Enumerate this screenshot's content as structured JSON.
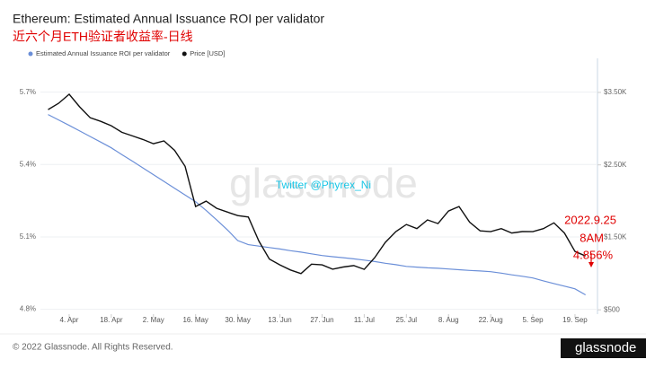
{
  "chart_data": {
    "type": "line",
    "title": "Ethereum: Estimated Annual Issuance ROI per validator",
    "subtitle": "近六个月ETH验证者收益率-日线",
    "watermark": "glassnode",
    "annotations": [
      "Twitter @Phyrex_Ni",
      "2022.9.25",
      "8AM",
      "4.856%"
    ],
    "footer": "© 2022 Glassnode. All Rights Reserved.",
    "logo": "glassnode",
    "categories": [
      null,
      null,
      "4. Apr",
      null,
      null,
      null,
      "18. Apr",
      null,
      null,
      null,
      "2. May",
      null,
      null,
      null,
      "16. May",
      null,
      null,
      null,
      "30. May",
      null,
      null,
      null,
      "13. Jun",
      null,
      null,
      null,
      "27. Jun",
      null,
      null,
      null,
      "11. Jul",
      null,
      null,
      null,
      "25. Jul",
      null,
      null,
      null,
      "8. Aug",
      null,
      null,
      null,
      "22. Aug",
      null,
      null,
      null,
      "5. Sep",
      null,
      null,
      null,
      "19. Sep",
      null
    ],
    "series": [
      {
        "name": "Estimated Annual Issuance ROI per validator",
        "color": "#6b8fd8",
        "values": [
          5.607,
          5.585,
          5.562,
          5.539,
          5.516,
          5.493,
          5.469,
          5.441,
          5.414,
          5.386,
          5.358,
          5.33,
          5.302,
          5.274,
          5.246,
          5.21,
          5.17,
          5.13,
          5.085,
          5.068,
          5.062,
          5.056,
          5.05,
          5.043,
          5.037,
          5.03,
          5.023,
          5.018,
          5.014,
          5.009,
          5.004,
          4.998,
          4.991,
          4.985,
          4.978,
          4.975,
          4.972,
          4.97,
          4.967,
          4.964,
          4.961,
          4.959,
          4.956,
          4.95,
          4.943,
          4.937,
          4.93,
          4.918,
          4.907,
          4.896,
          4.885,
          4.86
        ]
      },
      {
        "name": "Price [USD]",
        "color": "#111111",
        "axis": "y2",
        "values": [
          3263,
          3350,
          3474,
          3300,
          3150,
          3100,
          3040,
          2950,
          2900,
          2850,
          2792,
          2830,
          2700,
          2480,
          1925,
          2000,
          1900,
          1850,
          1800,
          1780,
          1450,
          1200,
          1120,
          1050,
          1000,
          1130,
          1120,
          1060,
          1090,
          1110,
          1058,
          1220,
          1430,
          1580,
          1677,
          1620,
          1740,
          1690,
          1863,
          1925,
          1710,
          1590,
          1578,
          1620,
          1560,
          1580,
          1578,
          1620,
          1700,
          1560,
          1305,
          1243
        ]
      }
    ],
    "ylim": [
      4.78,
      5.84
    ],
    "yticks": [
      {
        "value": 4.8,
        "label": "4.8%"
      },
      {
        "value": 5.1,
        "label": "5.1%"
      },
      {
        "value": 5.4,
        "label": "5.4%"
      },
      {
        "value": 5.7,
        "label": "5.7%"
      }
    ],
    "y2lim": [
      440,
      3970
    ],
    "y2ticks": [
      {
        "value": 500,
        "label": "$500"
      },
      {
        "value": 1500,
        "label": "$1.50K"
      },
      {
        "value": 2500,
        "label": "$2.50K"
      },
      {
        "value": 3500,
        "label": "$3.50K"
      }
    ],
    "grid": true,
    "legend": "top"
  }
}
